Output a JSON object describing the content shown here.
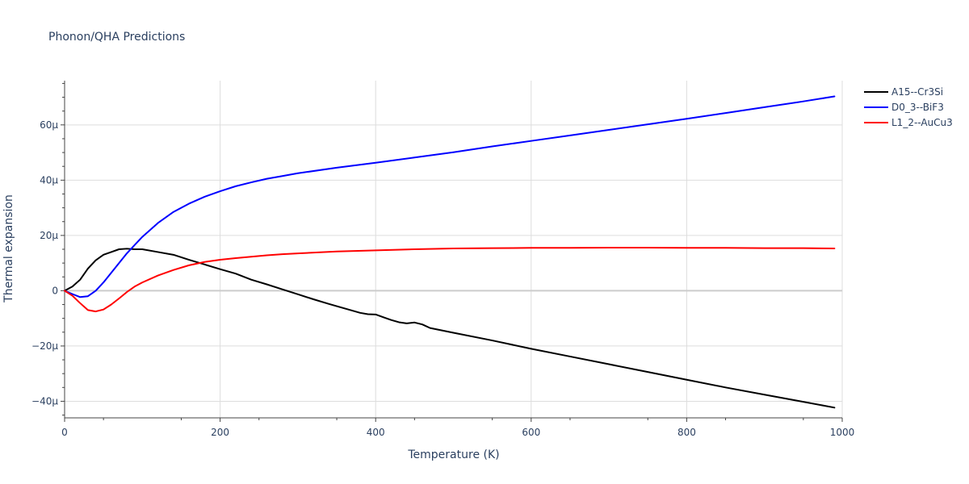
{
  "chart_data": {
    "type": "line",
    "title": "Phonon/QHA Predictions",
    "xlabel": "Temperature (K)",
    "ylabel": "Thermal expansion",
    "xlim": [
      0,
      1000
    ],
    "ylim": [
      -46,
      76
    ],
    "x_ticks": [
      0,
      200,
      400,
      600,
      800,
      1000
    ],
    "x_tick_labels": [
      "0",
      "200",
      "400",
      "600",
      "800",
      "1000"
    ],
    "y_ticks": [
      -40,
      -20,
      0,
      20,
      40,
      60
    ],
    "y_tick_labels": [
      "−40μ",
      "−20μ",
      "0",
      "20μ",
      "40μ",
      "60μ"
    ],
    "grid": true,
    "legend_position": "top-right",
    "series": [
      {
        "name": "A15--Cr3Si",
        "color": "#000000",
        "x": [
          0,
          10,
          20,
          30,
          40,
          50,
          60,
          70,
          80,
          90,
          100,
          120,
          140,
          160,
          180,
          200,
          220,
          240,
          260,
          280,
          300,
          320,
          340,
          360,
          380,
          390,
          400,
          410,
          420,
          430,
          440,
          450,
          460,
          470,
          500,
          550,
          600,
          650,
          700,
          750,
          800,
          850,
          900,
          950,
          990
        ],
        "y": [
          0,
          1.5,
          4,
          8,
          11,
          13,
          14,
          15,
          15.2,
          15,
          15,
          14,
          13,
          11.2,
          9.5,
          7.8,
          6.2,
          4,
          2.3,
          0.5,
          -1.3,
          -3.1,
          -4.8,
          -6.4,
          -8,
          -8.5,
          -8.6,
          -9.6,
          -10.6,
          -11.4,
          -11.8,
          -11.5,
          -12.2,
          -13.5,
          -15.2,
          -18,
          -21,
          -23.8,
          -26.6,
          -29.4,
          -32.2,
          -35,
          -37.6,
          -40.2,
          -42.3
        ]
      },
      {
        "name": "D0_3--BiF3",
        "color": "#0000ff",
        "x": [
          0,
          10,
          20,
          30,
          40,
          50,
          60,
          70,
          80,
          90,
          100,
          120,
          140,
          160,
          180,
          200,
          220,
          240,
          260,
          280,
          300,
          350,
          400,
          450,
          500,
          550,
          600,
          650,
          700,
          750,
          800,
          850,
          900,
          950,
          990
        ],
        "y": [
          0,
          -1.2,
          -2.3,
          -2,
          0,
          3,
          6.5,
          10,
          13.5,
          16.5,
          19.5,
          24.5,
          28.5,
          31.5,
          34,
          36,
          37.8,
          39.2,
          40.5,
          41.5,
          42.5,
          44.5,
          46.3,
          48.2,
          50.1,
          52.2,
          54.2,
          56.2,
          58.2,
          60.2,
          62.2,
          64.3,
          66.4,
          68.5,
          70.3
        ]
      },
      {
        "name": "L1_2--AuCu3",
        "color": "#ff0000",
        "x": [
          0,
          10,
          20,
          30,
          40,
          50,
          60,
          70,
          80,
          90,
          100,
          120,
          140,
          160,
          180,
          200,
          220,
          240,
          260,
          280,
          300,
          350,
          400,
          450,
          500,
          550,
          600,
          650,
          700,
          750,
          800,
          850,
          900,
          950,
          990
        ],
        "y": [
          0,
          -1.8,
          -4.5,
          -7,
          -7.5,
          -6.8,
          -5,
          -2.8,
          -0.5,
          1.5,
          3,
          5.5,
          7.5,
          9.2,
          10.4,
          11.2,
          11.8,
          12.3,
          12.8,
          13.2,
          13.5,
          14.2,
          14.6,
          15,
          15.3,
          15.4,
          15.5,
          15.5,
          15.6,
          15.6,
          15.5,
          15.5,
          15.4,
          15.4,
          15.3
        ]
      }
    ]
  }
}
